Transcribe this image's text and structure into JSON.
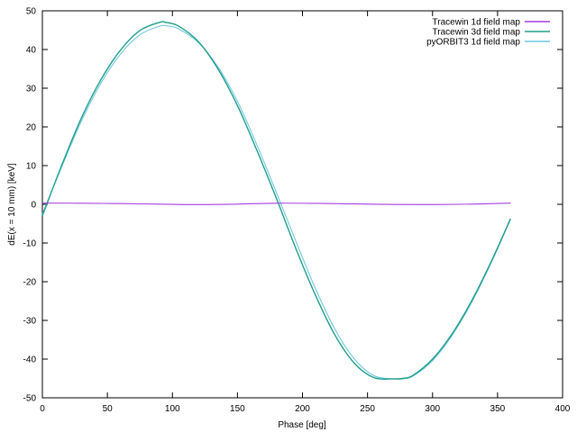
{
  "chart_data": {
    "type": "line",
    "title": "",
    "xlabel": "Phase [deg]",
    "ylabel": "dE(x = 10 mm) [keV]",
    "xlim": [
      0,
      400
    ],
    "ylim": [
      -50,
      50
    ],
    "xticks": [
      0,
      50,
      100,
      150,
      200,
      250,
      300,
      350,
      400
    ],
    "yticks": [
      -50,
      -40,
      -30,
      -20,
      -10,
      0,
      10,
      20,
      30,
      40,
      50
    ],
    "grid": false,
    "legend_position": "top-right",
    "series": [
      {
        "name": "Tracewin 1d field map",
        "color": "#a33de0",
        "x": [
          0,
          30,
          60,
          90,
          120,
          150,
          180,
          210,
          240,
          270,
          300,
          330,
          360
        ],
        "y": [
          0.3,
          0.28,
          0.18,
          0.05,
          -0.08,
          0.05,
          0.28,
          0.25,
          0.1,
          -0.05,
          -0.08,
          0.05,
          0.3
        ]
      },
      {
        "name": "Tracewin 3d field map",
        "color": "#1f9e8a",
        "x": [
          0,
          15,
          30,
          45,
          60,
          75,
          90,
          95,
          105,
          120,
          135,
          150,
          165,
          180,
          195,
          210,
          225,
          240,
          255,
          270,
          277,
          285,
          300,
          315,
          330,
          345,
          360
        ],
        "y": [
          -3.0,
          10.2,
          22.3,
          32.2,
          39.8,
          44.9,
          47.0,
          47.0,
          46.0,
          42.0,
          35.0,
          25.5,
          13.9,
          1.5,
          -11.5,
          -23.5,
          -33.8,
          -41.1,
          -44.8,
          -45.1,
          -45.0,
          -44.2,
          -40.0,
          -33.5,
          -25.0,
          -14.9,
          -3.7
        ]
      },
      {
        "name": "pyORBIT3 1d field map",
        "color": "#6fc8e0",
        "x": [
          0,
          15,
          30,
          45,
          60,
          75,
          90,
          96,
          105,
          120,
          135,
          150,
          165,
          180,
          195,
          210,
          225,
          240,
          255,
          270,
          277,
          285,
          300,
          315,
          330,
          345,
          360
        ],
        "y": [
          -2.5,
          9.8,
          21.5,
          31.3,
          38.8,
          43.8,
          46.0,
          46.1,
          45.3,
          41.8,
          35.5,
          26.6,
          15.3,
          3.0,
          -9.6,
          -21.8,
          -32.3,
          -40.0,
          -44.3,
          -45.1,
          -45.1,
          -44.4,
          -40.4,
          -33.9,
          -25.4,
          -15.2,
          -3.9
        ]
      }
    ]
  }
}
